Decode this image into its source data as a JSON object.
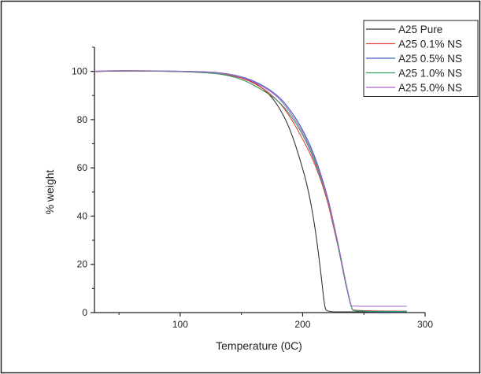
{
  "chart_data": {
    "type": "line",
    "title": "",
    "xlabel": "Temperature (0C)",
    "ylabel": "% weight",
    "xlim": [
      30,
      300
    ],
    "ylim": [
      0,
      110
    ],
    "xticks": [
      100,
      200,
      300
    ],
    "yticks": [
      0,
      20,
      40,
      60,
      80,
      100
    ],
    "grid": false,
    "legend_position": "top-right",
    "series": [
      {
        "name": "A25 Pure",
        "color": "#333333",
        "points": [
          [
            30,
            99.9
          ],
          [
            50,
            100.2
          ],
          [
            100,
            100.0
          ],
          [
            130,
            99.2
          ],
          [
            150,
            97.5
          ],
          [
            160,
            95.5
          ],
          [
            170,
            92.0
          ],
          [
            180,
            86.0
          ],
          [
            190,
            76.0
          ],
          [
            200,
            60.0
          ],
          [
            205,
            50.0
          ],
          [
            210,
            36.0
          ],
          [
            215,
            16.0
          ],
          [
            218,
            2.0
          ],
          [
            220,
            0.3
          ],
          [
            240,
            0.3
          ],
          [
            285,
            0.3
          ]
        ]
      },
      {
        "name": "A25 0.1% NS",
        "color": "#e8403a",
        "points": [
          [
            30,
            100.0
          ],
          [
            50,
            100.3
          ],
          [
            100,
            100.0
          ],
          [
            130,
            99.5
          ],
          [
            150,
            97.5
          ],
          [
            165,
            94.0
          ],
          [
            180,
            88.0
          ],
          [
            190,
            81.0
          ],
          [
            200,
            72.0
          ],
          [
            210,
            62.0
          ],
          [
            220,
            47.0
          ],
          [
            225,
            36.0
          ],
          [
            230,
            25.0
          ],
          [
            235,
            12.0
          ],
          [
            240,
            1.5
          ],
          [
            242,
            0.8
          ],
          [
            285,
            0.6
          ]
        ]
      },
      {
        "name": "A25 0.5% NS",
        "color": "#3b5fc0",
        "points": [
          [
            30,
            100.0
          ],
          [
            50,
            100.4
          ],
          [
            100,
            100.1
          ],
          [
            130,
            99.7
          ],
          [
            150,
            98.0
          ],
          [
            165,
            95.0
          ],
          [
            180,
            90.0
          ],
          [
            190,
            84.0
          ],
          [
            200,
            76.0
          ],
          [
            210,
            65.0
          ],
          [
            220,
            49.0
          ],
          [
            225,
            38.0
          ],
          [
            230,
            26.0
          ],
          [
            235,
            13.0
          ],
          [
            240,
            1.5
          ],
          [
            242,
            0.5
          ],
          [
            285,
            0.3
          ]
        ]
      },
      {
        "name": "A25 1.0% NS",
        "color": "#2e9e60",
        "points": [
          [
            30,
            100.0
          ],
          [
            50,
            100.3
          ],
          [
            100,
            100.0
          ],
          [
            130,
            99.3
          ],
          [
            150,
            97.0
          ],
          [
            165,
            93.0
          ],
          [
            180,
            88.0
          ],
          [
            190,
            82.0
          ],
          [
            200,
            74.0
          ],
          [
            210,
            63.0
          ],
          [
            220,
            48.0
          ],
          [
            225,
            37.0
          ],
          [
            230,
            25.0
          ],
          [
            235,
            12.0
          ],
          [
            240,
            1.5
          ],
          [
            242,
            0.6
          ],
          [
            285,
            0.5
          ]
        ]
      },
      {
        "name": "A25 5.0% NS",
        "color": "#a766c8",
        "points": [
          [
            30,
            100.0
          ],
          [
            50,
            100.3
          ],
          [
            100,
            100.1
          ],
          [
            130,
            99.6
          ],
          [
            150,
            97.8
          ],
          [
            165,
            94.5
          ],
          [
            180,
            89.5
          ],
          [
            190,
            83.0
          ],
          [
            200,
            75.0
          ],
          [
            210,
            64.0
          ],
          [
            220,
            48.5
          ],
          [
            225,
            37.5
          ],
          [
            230,
            26.0
          ],
          [
            235,
            13.0
          ],
          [
            239,
            3.0
          ],
          [
            240,
            2.6
          ],
          [
            285,
            2.6
          ]
        ]
      }
    ]
  }
}
